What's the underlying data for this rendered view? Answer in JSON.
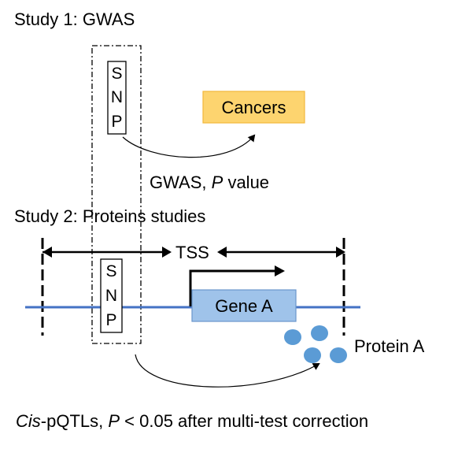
{
  "study1": {
    "title": "Study 1: GWAS"
  },
  "study2": {
    "title": "Study 2: Proteins studies"
  },
  "snp_letters": [
    "S",
    "N",
    "P"
  ],
  "cancers": {
    "label": "Cancers"
  },
  "gwas_caption": {
    "prefix": "GWAS, ",
    "italic": "P",
    "suffix": " value"
  },
  "tss": {
    "label": "TSS"
  },
  "gene": {
    "label": "Gene A"
  },
  "protein": {
    "label": "Protein A"
  },
  "footer": {
    "italic": "Cis",
    "text": "-pQTLs, ",
    "italic2": "P",
    "text2": " < 0.05 after multi-test correction"
  },
  "colors": {
    "cancers_fill": "#fdd46f",
    "cancers_border": "#f2b83c",
    "gene_fill": "#9fc3ea",
    "gene_border": "#6a96cc",
    "dna_line": "#4472c4",
    "protein_dots": "#5b9bd5"
  }
}
